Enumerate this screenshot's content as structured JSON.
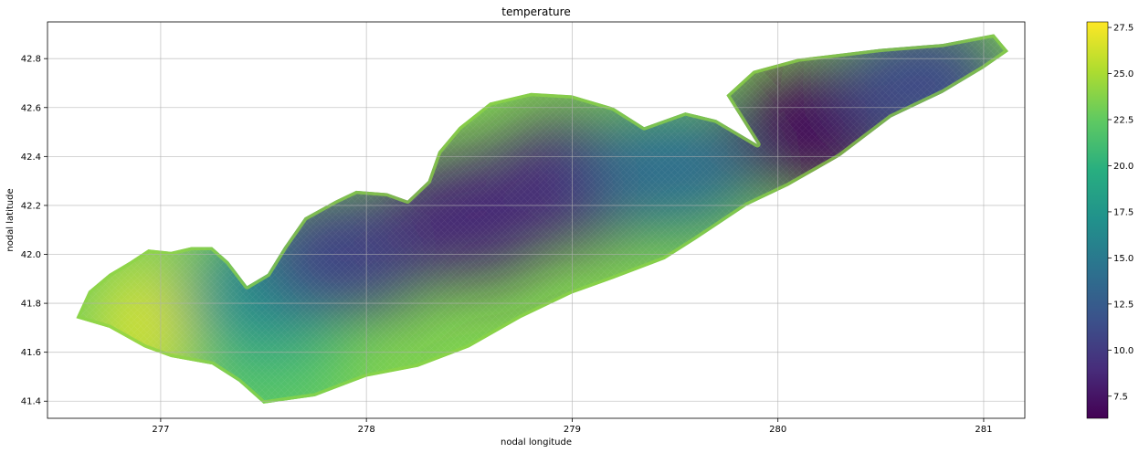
{
  "chart_data": {
    "type": "heatmap",
    "title": "temperature",
    "xlabel": "nodal longitude",
    "ylabel": "nodal latitude",
    "xlim": [
      276.45,
      281.2
    ],
    "ylim": [
      41.33,
      42.95
    ],
    "xticks": [
      277,
      278,
      279,
      280,
      281
    ],
    "xtick_labels": [
      "277",
      "278",
      "279",
      "280",
      "281"
    ],
    "yticks": [
      41.4,
      41.6,
      41.8,
      42.0,
      42.2,
      42.4,
      42.6,
      42.8
    ],
    "ytick_labels": [
      "41.4",
      "41.6",
      "41.8",
      "42.0",
      "42.2",
      "42.4",
      "42.6",
      "42.8"
    ],
    "grid": true,
    "colormap": "viridis",
    "colorbar": {
      "range": [
        6.3,
        27.8
      ],
      "ticks": [
        7.5,
        10.0,
        12.5,
        15.0,
        17.5,
        20.0,
        22.5,
        25.0,
        27.5
      ],
      "tick_labels": [
        "7.5",
        "10.0",
        "12.5",
        "15.0",
        "17.5",
        "20.0",
        "22.5",
        "25.0",
        "27.5"
      ]
    },
    "lake_outline": [
      [
        276.59,
        41.74
      ],
      [
        276.65,
        41.85
      ],
      [
        276.75,
        41.92
      ],
      [
        276.85,
        41.97
      ],
      [
        276.94,
        42.02
      ],
      [
        277.05,
        42.01
      ],
      [
        277.15,
        42.03
      ],
      [
        277.25,
        42.03
      ],
      [
        277.33,
        41.97
      ],
      [
        277.42,
        41.87
      ],
      [
        277.52,
        41.92
      ],
      [
        277.6,
        42.03
      ],
      [
        277.7,
        42.15
      ],
      [
        277.85,
        42.22
      ],
      [
        277.95,
        42.26
      ],
      [
        278.1,
        42.25
      ],
      [
        278.2,
        42.22
      ],
      [
        278.3,
        42.3
      ],
      [
        278.35,
        42.42
      ],
      [
        278.45,
        42.52
      ],
      [
        278.6,
        42.62
      ],
      [
        278.8,
        42.66
      ],
      [
        279.0,
        42.65
      ],
      [
        279.2,
        42.6
      ],
      [
        279.35,
        42.52
      ],
      [
        279.55,
        42.58
      ],
      [
        279.7,
        42.55
      ],
      [
        279.9,
        42.45
      ],
      [
        279.75,
        42.65
      ],
      [
        279.88,
        42.75
      ],
      [
        280.1,
        42.8
      ],
      [
        280.5,
        42.84
      ],
      [
        280.8,
        42.86
      ],
      [
        281.05,
        42.9
      ],
      [
        281.12,
        42.83
      ],
      [
        281.0,
        42.76
      ],
      [
        280.8,
        42.66
      ],
      [
        280.55,
        42.56
      ],
      [
        280.3,
        42.4
      ],
      [
        280.05,
        42.28
      ],
      [
        279.85,
        42.2
      ],
      [
        279.6,
        42.06
      ],
      [
        279.45,
        41.98
      ],
      [
        279.2,
        41.9
      ],
      [
        279.0,
        41.84
      ],
      [
        278.75,
        41.74
      ],
      [
        278.5,
        41.62
      ],
      [
        278.25,
        41.54
      ],
      [
        278.0,
        41.5
      ],
      [
        277.75,
        41.42
      ],
      [
        277.5,
        41.39
      ],
      [
        277.38,
        41.48
      ],
      [
        277.25,
        41.55
      ],
      [
        277.05,
        41.58
      ],
      [
        276.92,
        41.62
      ],
      [
        276.75,
        41.7
      ]
    ],
    "temperature_field": [
      {
        "lon": 276.85,
        "lat": 41.8,
        "value": 22.5
      },
      {
        "lon": 277.1,
        "lat": 41.72,
        "value": 26.5
      },
      {
        "lon": 277.5,
        "lat": 41.5,
        "value": 22.0
      },
      {
        "lon": 277.5,
        "lat": 41.85,
        "value": 17.0
      },
      {
        "lon": 277.9,
        "lat": 42.0,
        "value": 10.5
      },
      {
        "lon": 278.5,
        "lat": 42.15,
        "value": 8.5
      },
      {
        "lon": 279.0,
        "lat": 42.3,
        "value": 8.8
      },
      {
        "lon": 279.5,
        "lat": 42.35,
        "value": 14.0
      },
      {
        "lon": 280.2,
        "lat": 42.52,
        "value": 6.5
      },
      {
        "lon": 280.7,
        "lat": 42.7,
        "value": 11.0
      }
    ]
  }
}
